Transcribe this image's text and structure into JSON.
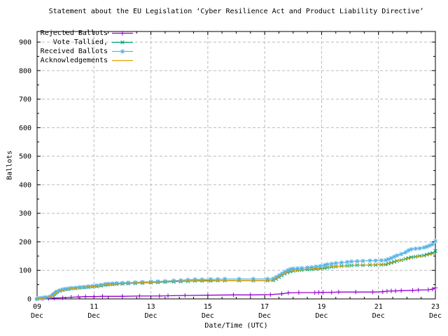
{
  "page": {
    "background": "#ffffff"
  },
  "chart_data": {
    "type": "line",
    "title": "Statement about the EU Legislation ‘Cyber Resilience Act and Product Liability Directive’",
    "xlabel": "Date/Time (UTC)",
    "ylabel": "Ballots",
    "x_domain": [
      9,
      23
    ],
    "y_domain": [
      0,
      937
    ],
    "x_ticks": [
      {
        "t": 9,
        "line1": "09",
        "line2": "Dec"
      },
      {
        "t": 11,
        "line1": "11",
        "line2": "Dec"
      },
      {
        "t": 13,
        "line1": "13",
        "line2": "Dec"
      },
      {
        "t": 15,
        "line1": "15",
        "line2": "Dec"
      },
      {
        "t": 17,
        "line1": "17",
        "line2": "Dec"
      },
      {
        "t": 19,
        "line1": "19",
        "line2": "Dec"
      },
      {
        "t": 21,
        "line1": "21",
        "line2": "Dec"
      },
      {
        "t": 23,
        "line1": "23",
        "line2": "Dec"
      }
    ],
    "x_minor_step": 0.5,
    "y_ticks": [
      0,
      100,
      200,
      300,
      400,
      500,
      600,
      700,
      800,
      900
    ],
    "y_minor_step": 50,
    "grid": true,
    "grid_color": "#bbbbbb",
    "border_color": "#000000",
    "legend_position": "top-left-inside",
    "series": [
      {
        "name": "Rejected Ballots",
        "color": "#9400d3",
        "marker": "plus",
        "points": [
          [
            9.0,
            0
          ],
          [
            9.2,
            1
          ],
          [
            9.4,
            2
          ],
          [
            9.6,
            3
          ],
          [
            9.9,
            4
          ],
          [
            10.2,
            6
          ],
          [
            10.45,
            7
          ],
          [
            10.7,
            8
          ],
          [
            11.0,
            8
          ],
          [
            11.3,
            9
          ],
          [
            12.0,
            9
          ],
          [
            12.6,
            10
          ],
          [
            13.3,
            10
          ],
          [
            13.6,
            11
          ],
          [
            14.2,
            12
          ],
          [
            15.0,
            13
          ],
          [
            15.9,
            14
          ],
          [
            16.5,
            14
          ],
          [
            17.2,
            15
          ],
          [
            17.6,
            18
          ],
          [
            17.83,
            21
          ],
          [
            18.2,
            22
          ],
          [
            18.76,
            22
          ],
          [
            18.9,
            23
          ],
          [
            19.05,
            23
          ],
          [
            19.35,
            23
          ],
          [
            19.6,
            24
          ],
          [
            20.2,
            24
          ],
          [
            20.8,
            24
          ],
          [
            21.15,
            25
          ],
          [
            21.3,
            27
          ],
          [
            21.45,
            28
          ],
          [
            21.6,
            28
          ],
          [
            21.8,
            29
          ],
          [
            22.2,
            30
          ],
          [
            22.4,
            31
          ],
          [
            22.75,
            32
          ],
          [
            22.9,
            34
          ],
          [
            23.0,
            39
          ]
        ]
      },
      {
        "name": "Vote Tallied,",
        "color": "#009e73",
        "marker": "cross",
        "points": [
          [
            9.0,
            0
          ],
          [
            9.1,
            2
          ],
          [
            9.2,
            3
          ],
          [
            9.3,
            5
          ],
          [
            9.45,
            7
          ],
          [
            9.55,
            12
          ],
          [
            9.6,
            16
          ],
          [
            9.65,
            20
          ],
          [
            9.7,
            24
          ],
          [
            9.8,
            28
          ],
          [
            9.9,
            31
          ],
          [
            10.0,
            33
          ],
          [
            10.1,
            34
          ],
          [
            10.2,
            36
          ],
          [
            10.35,
            37
          ],
          [
            10.5,
            39
          ],
          [
            10.65,
            40
          ],
          [
            10.8,
            41
          ],
          [
            10.95,
            43
          ],
          [
            11.1,
            44
          ],
          [
            11.25,
            46
          ],
          [
            11.4,
            49
          ],
          [
            11.5,
            50
          ],
          [
            11.65,
            51
          ],
          [
            11.8,
            52
          ],
          [
            12.0,
            53
          ],
          [
            12.2,
            54
          ],
          [
            12.45,
            55
          ],
          [
            12.7,
            56
          ],
          [
            13.0,
            57
          ],
          [
            13.25,
            58
          ],
          [
            13.5,
            59
          ],
          [
            13.8,
            60
          ],
          [
            14.05,
            61
          ],
          [
            14.3,
            62
          ],
          [
            14.55,
            63
          ],
          [
            14.8,
            63
          ],
          [
            15.1,
            63
          ],
          [
            15.35,
            64
          ],
          [
            15.6,
            64
          ],
          [
            16.1,
            64
          ],
          [
            16.6,
            64
          ],
          [
            17.1,
            64
          ],
          [
            17.3,
            65
          ],
          [
            17.4,
            70
          ],
          [
            17.5,
            76
          ],
          [
            17.6,
            82
          ],
          [
            17.7,
            88
          ],
          [
            17.8,
            93
          ],
          [
            17.9,
            96
          ],
          [
            18.0,
            98
          ],
          [
            18.15,
            100
          ],
          [
            18.3,
            101
          ],
          [
            18.5,
            103
          ],
          [
            18.65,
            104
          ],
          [
            18.8,
            105
          ],
          [
            18.95,
            106
          ],
          [
            19.1,
            108
          ],
          [
            19.2,
            110
          ],
          [
            19.35,
            112
          ],
          [
            19.5,
            113
          ],
          [
            19.7,
            115
          ],
          [
            19.9,
            116
          ],
          [
            20.05,
            117
          ],
          [
            20.25,
            118
          ],
          [
            20.45,
            118
          ],
          [
            20.7,
            119
          ],
          [
            20.9,
            119
          ],
          [
            21.1,
            120
          ],
          [
            21.25,
            121
          ],
          [
            21.35,
            124
          ],
          [
            21.45,
            127
          ],
          [
            21.55,
            130
          ],
          [
            21.65,
            133
          ],
          [
            21.8,
            136
          ],
          [
            21.95,
            140
          ],
          [
            22.05,
            143
          ],
          [
            22.15,
            146
          ],
          [
            22.3,
            148
          ],
          [
            22.45,
            150
          ],
          [
            22.6,
            152
          ],
          [
            22.7,
            155
          ],
          [
            22.8,
            158
          ],
          [
            22.9,
            161
          ],
          [
            23.0,
            168
          ]
        ]
      },
      {
        "name": "Received Ballots",
        "color": "#56b4e9",
        "marker": "asterisk",
        "points": [
          [
            9.0,
            1
          ],
          [
            9.1,
            3
          ],
          [
            9.2,
            4
          ],
          [
            9.3,
            6
          ],
          [
            9.45,
            8
          ],
          [
            9.55,
            14
          ],
          [
            9.6,
            18
          ],
          [
            9.65,
            22
          ],
          [
            9.7,
            26
          ],
          [
            9.8,
            30
          ],
          [
            9.9,
            33
          ],
          [
            10.0,
            35
          ],
          [
            10.1,
            36
          ],
          [
            10.2,
            38
          ],
          [
            10.35,
            39
          ],
          [
            10.5,
            41
          ],
          [
            10.65,
            42
          ],
          [
            10.8,
            44
          ],
          [
            10.95,
            45
          ],
          [
            11.1,
            47
          ],
          [
            11.25,
            49
          ],
          [
            11.4,
            52
          ],
          [
            11.5,
            53
          ],
          [
            11.65,
            54
          ],
          [
            11.8,
            55
          ],
          [
            12.0,
            56
          ],
          [
            12.2,
            57
          ],
          [
            12.45,
            58
          ],
          [
            12.7,
            59
          ],
          [
            13.0,
            60
          ],
          [
            13.25,
            61
          ],
          [
            13.5,
            62
          ],
          [
            13.8,
            64
          ],
          [
            14.05,
            65
          ],
          [
            14.3,
            67
          ],
          [
            14.55,
            68
          ],
          [
            14.8,
            68
          ],
          [
            15.1,
            69
          ],
          [
            15.35,
            69
          ],
          [
            15.6,
            70
          ],
          [
            16.1,
            70
          ],
          [
            16.6,
            70
          ],
          [
            17.1,
            70
          ],
          [
            17.3,
            71
          ],
          [
            17.4,
            76
          ],
          [
            17.5,
            82
          ],
          [
            17.6,
            88
          ],
          [
            17.7,
            94
          ],
          [
            17.8,
            100
          ],
          [
            17.9,
            104
          ],
          [
            18.0,
            106
          ],
          [
            18.15,
            107
          ],
          [
            18.3,
            108
          ],
          [
            18.5,
            110
          ],
          [
            18.65,
            111
          ],
          [
            18.8,
            113
          ],
          [
            18.95,
            115
          ],
          [
            19.1,
            118
          ],
          [
            19.2,
            121
          ],
          [
            19.35,
            123
          ],
          [
            19.5,
            125
          ],
          [
            19.7,
            127
          ],
          [
            19.9,
            129
          ],
          [
            20.05,
            131
          ],
          [
            20.25,
            132
          ],
          [
            20.45,
            133
          ],
          [
            20.7,
            134
          ],
          [
            20.9,
            134
          ],
          [
            21.1,
            135
          ],
          [
            21.25,
            136
          ],
          [
            21.35,
            139
          ],
          [
            21.45,
            143
          ],
          [
            21.55,
            148
          ],
          [
            21.65,
            152
          ],
          [
            21.8,
            157
          ],
          [
            21.95,
            163
          ],
          [
            22.05,
            170
          ],
          [
            22.15,
            174
          ],
          [
            22.3,
            176
          ],
          [
            22.45,
            177
          ],
          [
            22.6,
            180
          ],
          [
            22.7,
            183
          ],
          [
            22.8,
            187
          ],
          [
            22.9,
            191
          ],
          [
            23.0,
            203
          ]
        ]
      },
      {
        "name": "Acknowledgements",
        "color": "#e69f00",
        "marker": "none",
        "points": [
          [
            9.0,
            0
          ],
          [
            9.3,
            4
          ],
          [
            9.55,
            10
          ],
          [
            9.7,
            24
          ],
          [
            9.9,
            30
          ],
          [
            10.1,
            34
          ],
          [
            10.4,
            38
          ],
          [
            10.8,
            42
          ],
          [
            11.2,
            46
          ],
          [
            11.5,
            51
          ],
          [
            12.0,
            54
          ],
          [
            12.5,
            56
          ],
          [
            13.0,
            58
          ],
          [
            13.5,
            61
          ],
          [
            14.0,
            62
          ],
          [
            14.5,
            64
          ],
          [
            15.0,
            65
          ],
          [
            15.6,
            65
          ],
          [
            16.2,
            65
          ],
          [
            17.0,
            65
          ],
          [
            17.3,
            66
          ],
          [
            17.5,
            78
          ],
          [
            17.7,
            90
          ],
          [
            17.9,
            97
          ],
          [
            18.1,
            100
          ],
          [
            18.4,
            103
          ],
          [
            18.7,
            106
          ],
          [
            19.0,
            108
          ],
          [
            19.3,
            112
          ],
          [
            19.6,
            114
          ],
          [
            19.9,
            116
          ],
          [
            20.3,
            118
          ],
          [
            20.7,
            119
          ],
          [
            21.1,
            120
          ],
          [
            21.3,
            123
          ],
          [
            21.5,
            129
          ],
          [
            21.7,
            134
          ],
          [
            21.9,
            138
          ],
          [
            22.1,
            143
          ],
          [
            22.3,
            147
          ],
          [
            22.6,
            151
          ],
          [
            22.8,
            155
          ],
          [
            23.0,
            160
          ]
        ]
      }
    ]
  }
}
